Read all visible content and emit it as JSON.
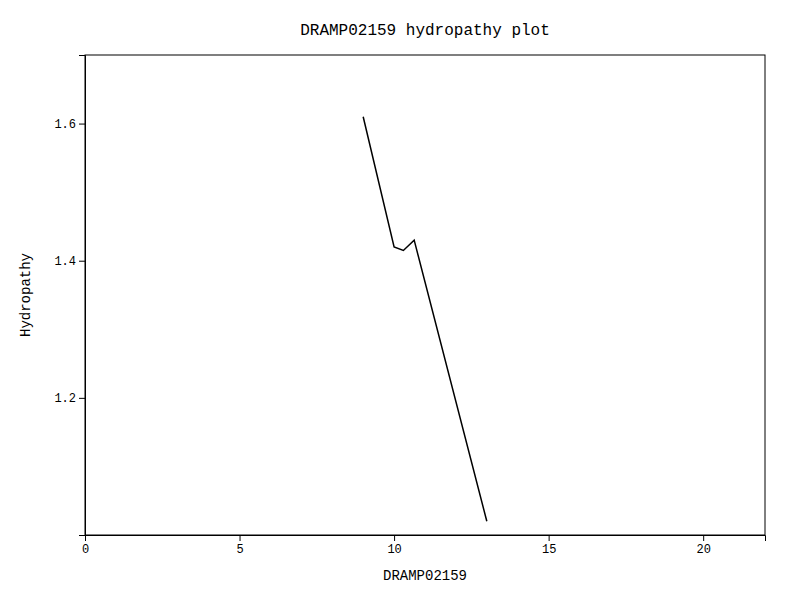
{
  "chart_data": {
    "type": "line",
    "title": "DRAMP02159 hydropathy plot",
    "xlabel": "DRAMP02159",
    "ylabel": "Hydropathy",
    "x": [
      9.0,
      10.0,
      10.3,
      10.65,
      13.0
    ],
    "values": [
      1.61,
      1.42,
      1.415,
      1.43,
      1.02
    ],
    "color": "#000000",
    "xlim": [
      0,
      22
    ],
    "ylim": [
      1.0,
      1.7
    ],
    "xticks": [
      0,
      5,
      10,
      15,
      20
    ],
    "yticks": [
      1.2,
      1.4,
      1.6
    ],
    "grid": false
  }
}
